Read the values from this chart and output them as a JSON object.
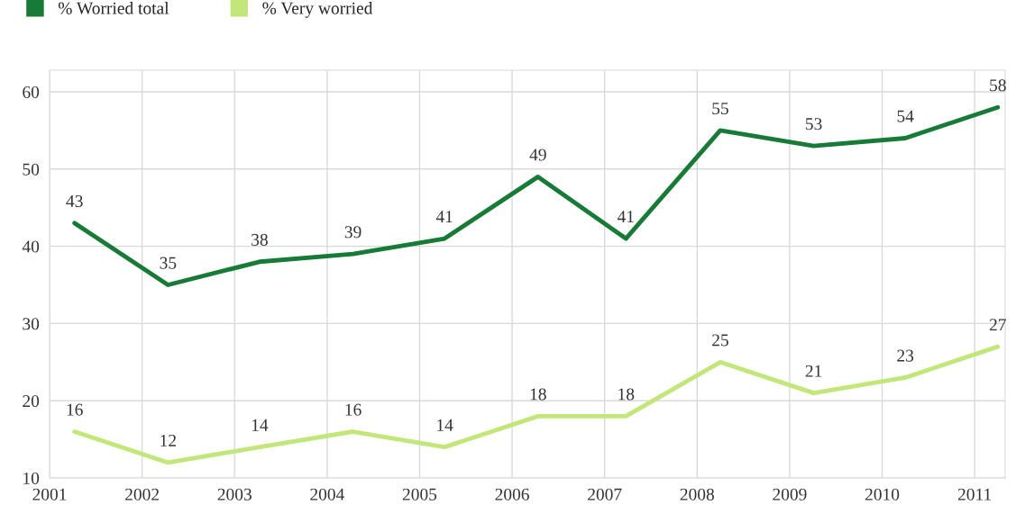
{
  "chart_data": {
    "type": "line",
    "x": [
      2001.27,
      2002.28,
      2003.27,
      2004.28,
      2005.27,
      2006.28,
      2007.23,
      2008.25,
      2009.26,
      2010.25,
      2011.25
    ],
    "series": [
      {
        "name": "% Worried total",
        "color": "#177a36",
        "values": [
          43,
          35,
          38,
          39,
          41,
          49,
          41,
          55,
          53,
          54,
          58
        ]
      },
      {
        "name": "% Very worried",
        "color": "#c3e67a",
        "values": [
          16,
          12,
          14,
          16,
          14,
          18,
          18,
          25,
          21,
          23,
          27
        ]
      }
    ],
    "xlim": [
      2001,
      2011.33
    ],
    "xticks": [
      2001,
      2002,
      2003,
      2004,
      2005,
      2006,
      2007,
      2008,
      2009,
      2010,
      2011
    ],
    "ylim": [
      10,
      62.8
    ],
    "yticks": [
      10,
      20,
      30,
      40,
      50,
      60
    ],
    "grid": true,
    "legend": "top left",
    "data_labels": true,
    "marker": "none",
    "line_style": "solid"
  }
}
